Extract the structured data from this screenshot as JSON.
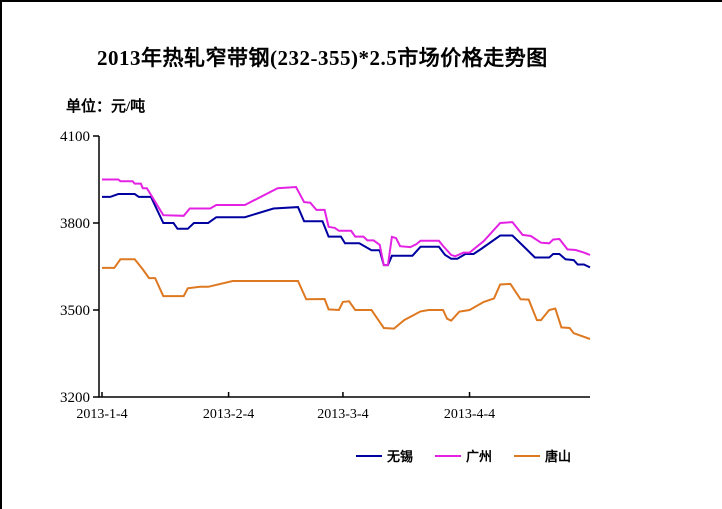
{
  "chart_data": {
    "type": "line",
    "title": "2013年热轧窄带钢(232-355)*2.5市场价格走势图",
    "unit": "单位：元/吨",
    "x_unit": "days_since_2013-01-04",
    "x_axis": {
      "tick_labels": [
        "2013-1-4",
        "2013-2-4",
        "2013-3-4",
        "2013-4-4"
      ],
      "tick_days": [
        0,
        31,
        59,
        90
      ],
      "range_days": [
        0,
        119.5
      ]
    },
    "y_axis": {
      "tick_values": [
        3200,
        3500,
        3800,
        4100
      ],
      "range": [
        3200,
        4100
      ]
    },
    "legend_position": "bottom-center",
    "grid": false,
    "series": [
      {
        "id": "wuxi",
        "name": "无锡",
        "color": "#0000A0",
        "points": [
          [
            0,
            3890
          ],
          [
            2,
            3890
          ],
          [
            4,
            3900
          ],
          [
            8,
            3900
          ],
          [
            9,
            3890
          ],
          [
            12,
            3890
          ],
          [
            15,
            3800
          ],
          [
            17.5,
            3800
          ],
          [
            18.5,
            3780
          ],
          [
            21,
            3780
          ],
          [
            22.5,
            3800
          ],
          [
            26,
            3800
          ],
          [
            28,
            3820
          ],
          [
            35,
            3820
          ],
          [
            42,
            3850
          ],
          [
            48,
            3855
          ],
          [
            49.5,
            3806
          ],
          [
            54,
            3806
          ],
          [
            55.5,
            3753
          ],
          [
            58.5,
            3753
          ],
          [
            59.5,
            3730
          ],
          [
            63,
            3730
          ],
          [
            66,
            3706
          ],
          [
            68,
            3706
          ],
          [
            69,
            3655
          ],
          [
            70,
            3655
          ],
          [
            71,
            3687
          ],
          [
            76,
            3687
          ],
          [
            78,
            3718
          ],
          [
            82.5,
            3718
          ],
          [
            84,
            3690
          ],
          [
            85.5,
            3677
          ],
          [
            87,
            3677
          ],
          [
            89,
            3693
          ],
          [
            91,
            3693
          ],
          [
            93,
            3712
          ],
          [
            97.5,
            3757
          ],
          [
            100.5,
            3757
          ],
          [
            104,
            3709
          ],
          [
            106,
            3681
          ],
          [
            109.5,
            3681
          ],
          [
            110.5,
            3693
          ],
          [
            112,
            3693
          ],
          [
            113.5,
            3675
          ],
          [
            115.5,
            3672
          ],
          [
            116.5,
            3657
          ],
          [
            118,
            3657
          ],
          [
            119.5,
            3647
          ]
        ]
      },
      {
        "id": "guangzhou",
        "name": "广州",
        "color": "#E322E3",
        "points": [
          [
            0,
            3950
          ],
          [
            4,
            3950
          ],
          [
            4.5,
            3944
          ],
          [
            7.5,
            3944
          ],
          [
            8,
            3936
          ],
          [
            9.5,
            3936
          ],
          [
            10,
            3920
          ],
          [
            11,
            3920
          ],
          [
            15,
            3827
          ],
          [
            20,
            3825
          ],
          [
            21.5,
            3850
          ],
          [
            26.5,
            3850
          ],
          [
            28,
            3862
          ],
          [
            35,
            3862
          ],
          [
            43,
            3920
          ],
          [
            47.5,
            3924
          ],
          [
            49.5,
            3872
          ],
          [
            51,
            3870
          ],
          [
            52.5,
            3845
          ],
          [
            54.5,
            3845
          ],
          [
            55.5,
            3787
          ],
          [
            57,
            3783
          ],
          [
            58,
            3773
          ],
          [
            61,
            3773
          ],
          [
            62,
            3753
          ],
          [
            64,
            3753
          ],
          [
            65,
            3740
          ],
          [
            66.5,
            3740
          ],
          [
            68,
            3725
          ],
          [
            69,
            3655
          ],
          [
            70,
            3655
          ],
          [
            71,
            3752
          ],
          [
            72,
            3748
          ],
          [
            73,
            3720
          ],
          [
            75.5,
            3717
          ],
          [
            77,
            3727
          ],
          [
            78,
            3739
          ],
          [
            82.5,
            3739
          ],
          [
            83.5,
            3721
          ],
          [
            85.5,
            3690
          ],
          [
            86.5,
            3685
          ],
          [
            88.5,
            3698
          ],
          [
            90,
            3698
          ],
          [
            93.5,
            3738
          ],
          [
            97.5,
            3800
          ],
          [
            100.5,
            3803
          ],
          [
            103,
            3759
          ],
          [
            105,
            3755
          ],
          [
            107.5,
            3732
          ],
          [
            109.5,
            3730
          ],
          [
            110.5,
            3743
          ],
          [
            112,
            3745
          ],
          [
            114,
            3709
          ],
          [
            116,
            3707
          ],
          [
            118,
            3698
          ],
          [
            119.5,
            3690
          ]
        ]
      },
      {
        "id": "tangshan",
        "name": "唐山",
        "color": "#DE7921",
        "points": [
          [
            0,
            3645
          ],
          [
            3,
            3645
          ],
          [
            4.5,
            3675
          ],
          [
            8,
            3675
          ],
          [
            10,
            3640
          ],
          [
            11.5,
            3610
          ],
          [
            13,
            3610
          ],
          [
            15,
            3548
          ],
          [
            20,
            3548
          ],
          [
            21,
            3575
          ],
          [
            24,
            3580
          ],
          [
            26,
            3580
          ],
          [
            32,
            3600
          ],
          [
            48,
            3600
          ],
          [
            50,
            3537
          ],
          [
            54.5,
            3538
          ],
          [
            55.5,
            3502
          ],
          [
            58,
            3500
          ],
          [
            59,
            3528
          ],
          [
            60.5,
            3530
          ],
          [
            62,
            3500
          ],
          [
            66,
            3500
          ],
          [
            69,
            3438
          ],
          [
            71.5,
            3436
          ],
          [
            74,
            3465
          ],
          [
            78,
            3495
          ],
          [
            80,
            3500
          ],
          [
            83.5,
            3500
          ],
          [
            84.5,
            3470
          ],
          [
            85.5,
            3463
          ],
          [
            87.5,
            3494
          ],
          [
            90,
            3500
          ],
          [
            93.5,
            3528
          ],
          [
            96,
            3540
          ],
          [
            97.5,
            3588
          ],
          [
            100,
            3590
          ],
          [
            102.5,
            3537
          ],
          [
            104.5,
            3536
          ],
          [
            106.5,
            3465
          ],
          [
            107.5,
            3465
          ],
          [
            109.5,
            3500
          ],
          [
            111,
            3505
          ],
          [
            112.5,
            3440
          ],
          [
            114.5,
            3438
          ],
          [
            115.5,
            3420
          ],
          [
            119.5,
            3400
          ]
        ]
      }
    ]
  },
  "colors": {
    "axis": "#000000",
    "background": "#FFFFFF",
    "text": "#000000"
  }
}
